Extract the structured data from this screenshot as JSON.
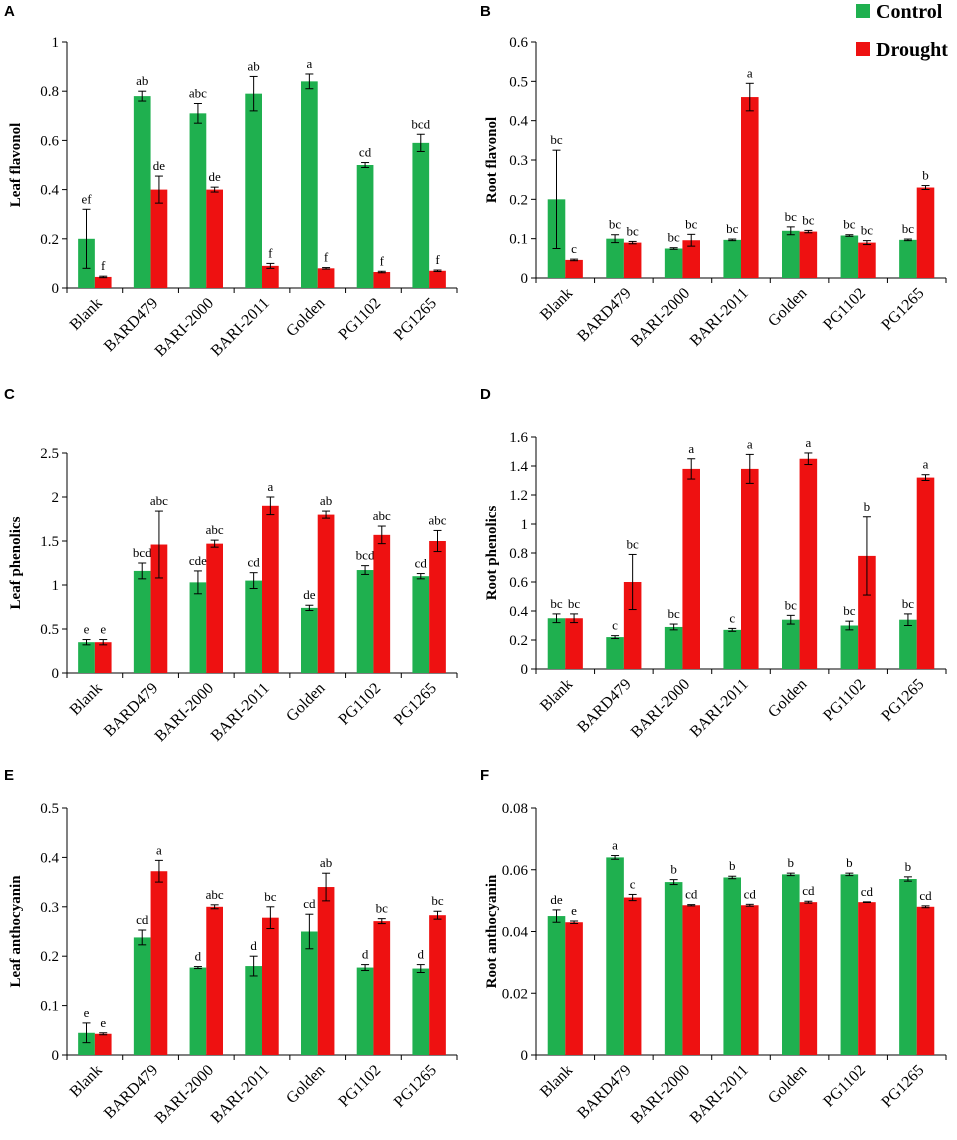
{
  "legend": [
    {
      "label": "Control",
      "color": "#1fb04f"
    },
    {
      "label": "Drought",
      "color": "#ee1111"
    }
  ],
  "chart_data": [
    {
      "letter": "A",
      "type": "bar",
      "ylabel": "Leaf flavonol",
      "categories": [
        "Blank",
        "BARD479",
        "BARI-2000",
        "BARI-2011",
        "Golden",
        "PG1102",
        "PG1265"
      ],
      "ylim": [
        0,
        1
      ],
      "ticks": [
        0,
        0.2,
        0.4,
        0.6,
        0.8,
        1
      ],
      "tick_labels": [
        "0",
        "0.2",
        "0.4",
        "0.6",
        "0.8",
        "1"
      ],
      "series": [
        {
          "name": "Control",
          "values": [
            0.2,
            0.78,
            0.71,
            0.79,
            0.84,
            0.5,
            0.59
          ],
          "errors": [
            0.12,
            0.02,
            0.04,
            0.07,
            0.03,
            0.01,
            0.035
          ],
          "labels": [
            "ef",
            "ab",
            "abc",
            "ab",
            "a",
            "cd",
            "bcd"
          ]
        },
        {
          "name": "Drought",
          "values": [
            0.045,
            0.4,
            0.4,
            0.09,
            0.08,
            0.065,
            0.07
          ],
          "errors": [
            0.003,
            0.055,
            0.01,
            0.01,
            0.003,
            0.003,
            0.003
          ],
          "labels": [
            "f",
            "de",
            "de",
            "f",
            "f",
            "f",
            "f"
          ]
        }
      ]
    },
    {
      "letter": "B",
      "type": "bar",
      "ylabel": "Root flavonol",
      "categories": [
        "Blank",
        "BARD479",
        "BARI-2000",
        "BARI-2011",
        "Golden",
        "PG1102",
        "PG1265"
      ],
      "ylim": [
        0,
        0.6
      ],
      "ticks": [
        0,
        0.1,
        0.2,
        0.3,
        0.4,
        0.5,
        0.6
      ],
      "tick_labels": [
        "0",
        "0.1",
        "0.2",
        "0.3",
        "0.4",
        "0.5",
        "0.6"
      ],
      "series": [
        {
          "name": "Control",
          "values": [
            0.2,
            0.1,
            0.075,
            0.097,
            0.12,
            0.108,
            0.097
          ],
          "errors": [
            0.125,
            0.01,
            0.002,
            0.002,
            0.01,
            0.002,
            0.002
          ],
          "labels": [
            "bc",
            "bc",
            "bc",
            "bc",
            "bc",
            "bc",
            "bc"
          ]
        },
        {
          "name": "Drought",
          "values": [
            0.046,
            0.09,
            0.096,
            0.46,
            0.118,
            0.09,
            0.23
          ],
          "errors": [
            0.002,
            0.003,
            0.015,
            0.035,
            0.003,
            0.005,
            0.005
          ],
          "labels": [
            "c",
            "bc",
            "bc",
            "a",
            "bc",
            "bc",
            "b"
          ]
        }
      ]
    },
    {
      "letter": "C",
      "type": "bar",
      "ylabel": "Leaf phenolics",
      "categories": [
        "Blank",
        "BARD479",
        "BARI-2000",
        "BARI-2011",
        "Golden",
        "PG1102",
        "PG1265"
      ],
      "ylim": [
        0,
        2.5
      ],
      "ticks": [
        0,
        0.5,
        1,
        1.5,
        2,
        2.5
      ],
      "tick_labels": [
        "0",
        "0.5",
        "1",
        "1.5",
        "2",
        "2.5"
      ],
      "series": [
        {
          "name": "Control",
          "values": [
            0.35,
            1.16,
            1.03,
            1.05,
            0.74,
            1.17,
            1.1
          ],
          "errors": [
            0.03,
            0.09,
            0.13,
            0.09,
            0.03,
            0.05,
            0.03
          ],
          "labels": [
            "e",
            "bcd",
            "cde",
            "cd",
            "de",
            "bcd",
            "cd"
          ]
        },
        {
          "name": "Drought",
          "values": [
            0.35,
            1.46,
            1.47,
            1.9,
            1.8,
            1.57,
            1.5
          ],
          "errors": [
            0.03,
            0.38,
            0.04,
            0.1,
            0.04,
            0.1,
            0.12
          ],
          "labels": [
            "e",
            "abc",
            "abc",
            "a",
            "ab",
            "abc",
            "abc"
          ]
        }
      ]
    },
    {
      "letter": "D",
      "type": "bar",
      "ylabel": "Root phenolics",
      "categories": [
        "Blank",
        "BARD479",
        "BARI-2000",
        "BARI-2011",
        "Golden",
        "PG1102",
        "PG1265"
      ],
      "ylim": [
        0,
        1.6
      ],
      "ticks": [
        0,
        0.2,
        0.4,
        0.6,
        0.8,
        1,
        1.2,
        1.4,
        1.6
      ],
      "tick_labels": [
        "0",
        "0.2",
        "0.4",
        "0.6",
        "0.8",
        "1",
        "1.2",
        "1.4",
        "1.6"
      ],
      "series": [
        {
          "name": "Control",
          "values": [
            0.35,
            0.22,
            0.29,
            0.27,
            0.34,
            0.3,
            0.34
          ],
          "errors": [
            0.03,
            0.01,
            0.02,
            0.01,
            0.03,
            0.03,
            0.04
          ],
          "labels": [
            "bc",
            "c",
            "bc",
            "c",
            "bc",
            "bc",
            "bc"
          ]
        },
        {
          "name": "Drought",
          "values": [
            0.35,
            0.6,
            1.38,
            1.38,
            1.45,
            0.78,
            1.32
          ],
          "errors": [
            0.03,
            0.19,
            0.07,
            0.1,
            0.04,
            0.27,
            0.02
          ],
          "labels": [
            "bc",
            "bc",
            "a",
            "a",
            "a",
            "b",
            "a"
          ]
        }
      ]
    },
    {
      "letter": "E",
      "type": "bar",
      "ylabel": "Leaf anthocyanin",
      "categories": [
        "Blank",
        "BARD479",
        "BARI-2000",
        "BARI-2011",
        "Golden",
        "PG1102",
        "PG1265"
      ],
      "ylim": [
        0,
        0.5
      ],
      "ticks": [
        0,
        0.1,
        0.2,
        0.3,
        0.4,
        0.5
      ],
      "tick_labels": [
        "0",
        "0.1",
        "0.2",
        "0.3",
        "0.4",
        "0.5"
      ],
      "series": [
        {
          "name": "Control",
          "values": [
            0.045,
            0.238,
            0.177,
            0.18,
            0.25,
            0.177,
            0.175
          ],
          "errors": [
            0.02,
            0.015,
            0.002,
            0.02,
            0.035,
            0.006,
            0.008
          ],
          "labels": [
            "e",
            "cd",
            "d",
            "d",
            "cd",
            "d",
            "d"
          ]
        },
        {
          "name": "Drought",
          "values": [
            0.043,
            0.372,
            0.3,
            0.278,
            0.34,
            0.271,
            0.283
          ],
          "errors": [
            0.002,
            0.022,
            0.004,
            0.022,
            0.028,
            0.005,
            0.008
          ],
          "labels": [
            "e",
            "a",
            "abc",
            "bc",
            "ab",
            "bc",
            "bc"
          ]
        }
      ]
    },
    {
      "letter": "F",
      "type": "bar",
      "ylabel": "Root anthocyanin",
      "categories": [
        "Blank",
        "BARD479",
        "BARI-2000",
        "BARI-2011",
        "Golden",
        "PG1102",
        "PG1265"
      ],
      "ylim": [
        0,
        0.08
      ],
      "ticks": [
        0,
        0.02,
        0.04,
        0.06,
        0.08
      ],
      "tick_labels": [
        "0",
        "0.02",
        "0.04",
        "0.06",
        "0.08"
      ],
      "series": [
        {
          "name": "Control",
          "values": [
            0.045,
            0.064,
            0.056,
            0.0575,
            0.0585,
            0.0585,
            0.057
          ],
          "errors": [
            0.002,
            0.0006,
            0.0008,
            0.0004,
            0.0004,
            0.0004,
            0.0007
          ],
          "labels": [
            "de",
            "a",
            "b",
            "b",
            "b",
            "b",
            "b"
          ]
        },
        {
          "name": "Drought",
          "values": [
            0.043,
            0.051,
            0.0485,
            0.0485,
            0.0495,
            0.0495,
            0.048
          ],
          "errors": [
            0.0004,
            0.001,
            0.0002,
            0.0003,
            0.0003,
            0.0001,
            0.0003
          ],
          "labels": [
            "e",
            "c",
            "cd",
            "cd",
            "cd",
            "cd",
            "cd"
          ]
        }
      ]
    }
  ]
}
